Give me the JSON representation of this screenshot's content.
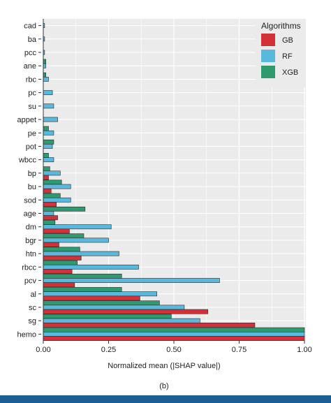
{
  "chart_data": {
    "type": "bar",
    "orientation": "horizontal",
    "categories": [
      "cad",
      "ba",
      "pcc",
      "ane",
      "rbc",
      "pc",
      "su",
      "appet",
      "pe",
      "pot",
      "wbcc",
      "bp",
      "bu",
      "sod",
      "age",
      "dm",
      "bgr",
      "htn",
      "rbcc",
      "pcv",
      "al",
      "sc",
      "sg",
      "hemo"
    ],
    "series": [
      {
        "name": "GB",
        "color": "#d2313a",
        "values": [
          0.0,
          0.0,
          0.0,
          0.0,
          0.0,
          0.0,
          0.0,
          0.0,
          0.0,
          0.0,
          0.0,
          0.02,
          0.03,
          0.05,
          0.055,
          0.1,
          0.06,
          0.145,
          0.11,
          0.12,
          0.37,
          0.63,
          0.81,
          1.0
        ]
      },
      {
        "name": "RF",
        "color": "#5ab8dc",
        "values": [
          0.005,
          0.005,
          0.005,
          0.01,
          0.02,
          0.035,
          0.04,
          0.055,
          0.04,
          0.035,
          0.04,
          0.065,
          0.105,
          0.105,
          0.04,
          0.26,
          0.25,
          0.29,
          0.365,
          0.675,
          0.435,
          0.54,
          0.6,
          1.0
        ]
      },
      {
        "name": "XGB",
        "color": "#2e9a6f",
        "values": [
          0.0,
          0.0,
          0.0,
          0.01,
          0.01,
          0.0,
          0.0,
          0.0,
          0.02,
          0.04,
          0.02,
          0.025,
          0.07,
          0.065,
          0.16,
          0.045,
          0.155,
          0.14,
          0.13,
          0.3,
          0.3,
          0.445,
          0.49,
          1.0
        ]
      }
    ],
    "xlabel": "Normalized mean (|SHAP value|)",
    "ylabel": "",
    "xlim": [
      0,
      1
    ],
    "xticks": [
      "0.00",
      "0.25",
      "0.50",
      "0.75",
      "1.00"
    ],
    "grid": true,
    "legend_title": "Algorithms",
    "legend_position": "top-right",
    "panel_label": "(b)"
  },
  "colors": {
    "panel_background": "#ebebeb",
    "grid": "#ffffff",
    "bar_outline": "#2a2a2a",
    "bottom_bar": "#1d5f92"
  }
}
